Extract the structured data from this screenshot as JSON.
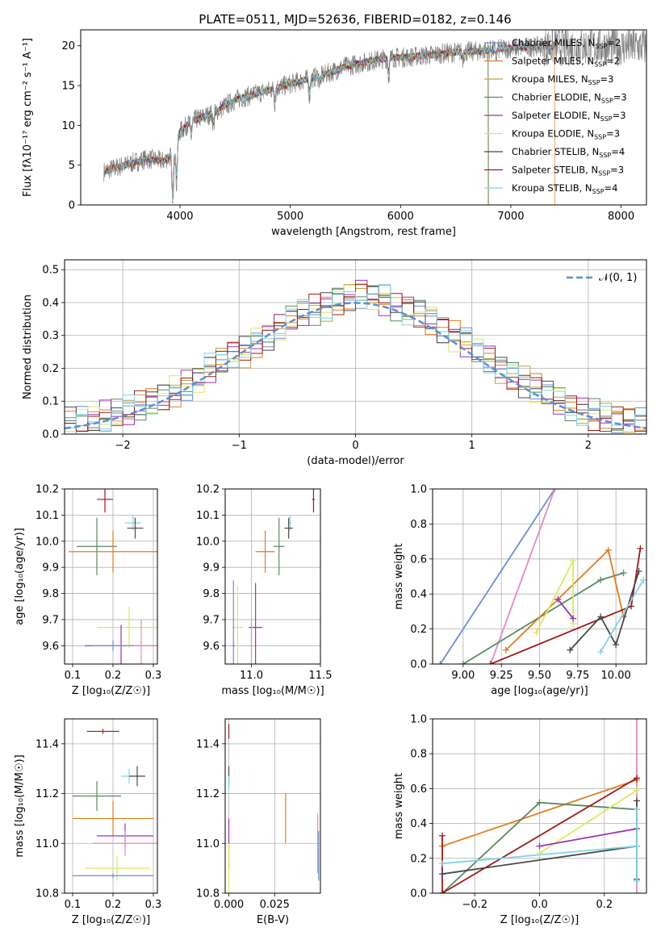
{
  "title": "PLATE=0511, MJD=52636, FIBERID=0182, z=0.146",
  "colors": {
    "chabrier_miles": "#6a8fd6",
    "salpeter_miles": "#e07c1d",
    "kroupa_miles": "#c8a03c",
    "chabrier_elodie": "#5a8a5f",
    "salpeter_elodie": "#9b32b4",
    "kroupa_elodie": "#d8ea60",
    "chabrier_stelib": "#4a4a4a",
    "salpeter_stelib": "#a01b1b",
    "kroupa_stelib": "#80d4e8",
    "normal_curve": "#5b8fd6",
    "pink": "#e48ac0"
  },
  "chart_data": [
    {
      "id": "spectrum",
      "type": "line",
      "xlabel": "wavelength [Angstrom, rest frame]",
      "ylabel": "Flux [fλ10⁻¹⁷ erg cm⁻² s⁻¹ A⁻¹]",
      "xlim": [
        3100,
        8230
      ],
      "ylim": [
        0,
        22
      ],
      "xticks": [
        4000,
        5000,
        6000,
        7000,
        8000
      ],
      "yticks": [
        0,
        5,
        10,
        15,
        20
      ],
      "grid": false,
      "legend_placement": "top-right",
      "continuum": [
        [
          3310,
          4.2
        ],
        [
          3400,
          4.6
        ],
        [
          3550,
          5.2
        ],
        [
          3700,
          5.8
        ],
        [
          3850,
          5.5
        ],
        [
          3950,
          6.5
        ],
        [
          4000,
          9.2
        ],
        [
          4100,
          10.5
        ],
        [
          4300,
          11.5
        ],
        [
          4500,
          13.2
        ],
        [
          4700,
          14.0
        ],
        [
          4900,
          14.8
        ],
        [
          5100,
          15.6
        ],
        [
          5300,
          16.3
        ],
        [
          5500,
          17.4
        ],
        [
          5700,
          18.0
        ],
        [
          5900,
          18.5
        ],
        [
          6100,
          18.6
        ],
        [
          6300,
          18.9
        ],
        [
          6500,
          19.2
        ],
        [
          6700,
          19.3
        ],
        [
          6900,
          19.6
        ],
        [
          7100,
          19.8
        ],
        [
          7300,
          19.9
        ]
      ],
      "absorption_features": [
        [
          3934,
          7
        ],
        [
          3969,
          5
        ],
        [
          4102,
          2
        ],
        [
          4304,
          1.6
        ],
        [
          4861,
          1.8
        ],
        [
          5175,
          2.2
        ],
        [
          5270,
          0.8
        ],
        [
          5892,
          2.5
        ],
        [
          6563,
          0.8
        ],
        [
          6867,
          0.9
        ]
      ],
      "series": [
        {
          "name": "Chabrier MILES",
          "nssp": "2",
          "xmax": 7400,
          "end_drop": null
        },
        {
          "name": "Salpeter MILES",
          "nssp": "2",
          "xmax": 7400,
          "end_drop": 7400
        },
        {
          "name": "Kroupa MILES",
          "nssp": "3",
          "xmax": 6790,
          "end_drop": 6790
        },
        {
          "name": "Chabrier ELODIE",
          "nssp": "3",
          "xmax": 6800,
          "end_drop": 6800
        },
        {
          "name": "Salpeter ELODIE",
          "nssp": "3",
          "xmax": 6800,
          "end_drop": null
        },
        {
          "name": "Kroupa ELODIE",
          "nssp": "3",
          "xmax": 6800,
          "end_drop": null
        },
        {
          "name": "Chabrier STELIB",
          "nssp": "4",
          "xmax": 7400,
          "end_drop": null
        },
        {
          "name": "Salpeter STELIB",
          "nssp": "3",
          "xmax": 7400,
          "end_drop": null
        },
        {
          "name": "Kroupa STELIB",
          "nssp": "4",
          "xmax": 7400,
          "end_drop": null
        }
      ],
      "data_series_color": "#808080",
      "data_xrange": [
        3310,
        8230
      ]
    },
    {
      "id": "residuals",
      "type": "step",
      "xlabel": "(data-model)/error",
      "ylabel": "Normed distribution",
      "xlim": [
        -2.5,
        2.5
      ],
      "ylim": [
        0,
        0.53
      ],
      "xticks": [
        -2,
        -1,
        0,
        1,
        2
      ],
      "yticks": [
        0.0,
        0.1,
        0.2,
        0.3,
        0.4,
        0.5
      ],
      "grid": true,
      "legend_label": "𝒩(0, 1)",
      "legend_placement": "top-right",
      "bin_edges_start": -2.5,
      "bin_width": 0.1,
      "histograms": [
        [
          0.03,
          0.03,
          0.05,
          0.05,
          0.05,
          0.08,
          0.08,
          0.08,
          0.1,
          0.1,
          0.1,
          0.14,
          0.16,
          0.17,
          0.21,
          0.19,
          0.21,
          0.23,
          0.28,
          0.28,
          0.3,
          0.35,
          0.33,
          0.35,
          0.37,
          0.4,
          0.42,
          0.4,
          0.43,
          0.46,
          0.47,
          0.4,
          0.45,
          0.44,
          0.42,
          0.38,
          0.36,
          0.36,
          0.34,
          0.3,
          0.28,
          0.26,
          0.22,
          0.2,
          0.2,
          0.18,
          0.14,
          0.13,
          0.12,
          0.09,
          0.08,
          0.08
        ],
        [
          0.035,
          0.04,
          0.045,
          0.055,
          0.06,
          0.07,
          0.085,
          0.095,
          0.11,
          0.13,
          0.15,
          0.17,
          0.2,
          0.22,
          0.24,
          0.25,
          0.28,
          0.3,
          0.33,
          0.35,
          0.37,
          0.38,
          0.39,
          0.41,
          0.42,
          0.43,
          0.42,
          0.41,
          0.39,
          0.38,
          0.37,
          0.35,
          0.32,
          0.3,
          0.28,
          0.25,
          0.23,
          0.2,
          0.18,
          0.16,
          0.14,
          0.12,
          0.1,
          0.085,
          0.07,
          0.06,
          0.05,
          0.04,
          0.035,
          0.03
        ]
      ]
    },
    {
      "id": "age_vs_Z",
      "type": "scatter",
      "xlabel": "Z [log₁₀(Z/Z☉)]",
      "ylabel": "age  [log₁₀(age/yr)]",
      "xlim": [
        0.08,
        0.31
      ],
      "ylim": [
        9.53,
        10.2
      ],
      "xticks": [
        0.1,
        0.2,
        0.3
      ],
      "yticks": [
        9.6,
        9.7,
        9.8,
        9.9,
        10.0,
        10.1,
        10.2
      ],
      "grid": true,
      "points": [
        {
          "x": 0.18,
          "y": 10.16,
          "xerr": 0.02,
          "yerr": 0.05,
          "color": "#a01b1b"
        },
        {
          "x": 0.25,
          "y": 10.07,
          "xerr": 0.02,
          "yerr": 0.03,
          "color": "#80d4e8"
        },
        {
          "x": 0.255,
          "y": 10.05,
          "xerr": 0.02,
          "yerr": 0.04,
          "color": "#4a4a4a"
        },
        {
          "x": 0.16,
          "y": 9.98,
          "xerr": 0.05,
          "yerr": 0.11,
          "color": "#5a8a5f"
        },
        {
          "x": 0.2,
          "y": 9.96,
          "xerr": 0.11,
          "yerr": 0.08,
          "color": "#e07c1d"
        },
        {
          "x": 0.24,
          "y": 9.67,
          "xerr": 0.08,
          "yerr": 0.08,
          "color": "#d8ea60"
        },
        {
          "x": 0.22,
          "y": 9.6,
          "xerr": 0.09,
          "yerr": 0.08,
          "color": "#9b32b4"
        },
        {
          "x": 0.27,
          "y": 9.6,
          "xerr": 0.08,
          "yerr": 0.1,
          "color": "#e48ac0"
        },
        {
          "x": 0.2,
          "y": 9.6,
          "xerr": 0.05,
          "yerr": 0.02,
          "color": "#6a8fd6"
        }
      ]
    },
    {
      "id": "age_vs_mass",
      "type": "scatter",
      "xlabel": "mass [log₁₀(M/M☉)]",
      "ylabel": "",
      "xlim": [
        10.81,
        11.5
      ],
      "ylim": [
        9.53,
        10.2
      ],
      "xticks": [
        11.0,
        11.5
      ],
      "yticks": [
        9.6,
        9.7,
        9.8,
        9.9,
        10.0,
        10.1,
        10.2
      ],
      "grid": true,
      "points": [
        {
          "x": 11.45,
          "y": 10.16,
          "xerr": 0.01,
          "yerr": 0.05,
          "color": "#a01b1b"
        },
        {
          "x": 11.28,
          "y": 10.07,
          "xerr": 0.01,
          "yerr": 0.03,
          "color": "#80d4e8"
        },
        {
          "x": 11.27,
          "y": 10.05,
          "xerr": 0.03,
          "yerr": 0.04,
          "color": "#4a4a4a"
        },
        {
          "x": 11.2,
          "y": 9.98,
          "xerr": 0.04,
          "yerr": 0.11,
          "color": "#5a8a5f"
        },
        {
          "x": 11.1,
          "y": 9.96,
          "xerr": 0.07,
          "yerr": 0.08,
          "color": "#e07c1d"
        },
        {
          "x": 10.9,
          "y": 9.67,
          "xerr": 0.04,
          "yerr": 0.16,
          "color": "#d8ea60"
        },
        {
          "x": 11.03,
          "y": 9.67,
          "xerr": 0.05,
          "yerr": 0.17,
          "color": "#9b32b4"
        },
        {
          "x": 11.0,
          "y": 9.6,
          "xerr": 0.01,
          "yerr": 0.1,
          "color": "#e48ac0"
        },
        {
          "x": 10.87,
          "y": 9.6,
          "xerr": 0.01,
          "yerr": 0.25,
          "color": "#6a8fd6"
        }
      ]
    },
    {
      "id": "massweight_vs_age",
      "type": "line",
      "xlabel": "age  [log₁₀(age/yr)]",
      "ylabel": "mass weight",
      "xlim": [
        8.8,
        10.2
      ],
      "ylim": [
        0,
        1
      ],
      "xticks": [
        9.0,
        9.25,
        9.5,
        9.75,
        10.0
      ],
      "yticks": [
        0.0,
        0.2,
        0.4,
        0.6,
        0.8,
        1.0
      ],
      "grid": true,
      "series": [
        {
          "color": "#6a8fd6",
          "points": [
            [
              8.85,
              0.0
            ],
            [
              9.6,
              1.0
            ]
          ]
        },
        {
          "color": "#e48ac0",
          "points": [
            [
              9.18,
              0.0
            ],
            [
              9.6,
              1.0
            ]
          ]
        },
        {
          "color": "#5a8a5f",
          "points": [
            [
              9.0,
              0.0
            ],
            [
              9.9,
              0.48
            ],
            [
              10.05,
              0.52
            ]
          ]
        },
        {
          "color": "#e07c1d",
          "points": [
            [
              9.28,
              0.08
            ],
            [
              9.95,
              0.65
            ],
            [
              10.05,
              0.27
            ]
          ]
        },
        {
          "color": "#d8ea60",
          "points": [
            [
              9.48,
              0.18
            ],
            [
              9.72,
              0.59
            ],
            [
              9.72,
              0.23
            ]
          ]
        },
        {
          "color": "#9b32b4",
          "points": [
            [
              9.62,
              0.37
            ],
            [
              9.72,
              0.26
            ]
          ]
        },
        {
          "color": "#a01b1b",
          "points": [
            [
              9.18,
              0.0
            ],
            [
              10.1,
              0.33
            ],
            [
              10.16,
              0.66
            ]
          ]
        },
        {
          "color": "#4a4a4a",
          "points": [
            [
              9.7,
              0.08
            ],
            [
              9.9,
              0.27
            ],
            [
              10.0,
              0.11
            ],
            [
              10.15,
              0.53
            ]
          ]
        },
        {
          "color": "#80d4e8",
          "points": [
            [
              9.9,
              0.07
            ],
            [
              10.18,
              0.48
            ]
          ]
        }
      ]
    },
    {
      "id": "mass_vs_Z",
      "type": "scatter",
      "xlabel": "Z [log₁₀(Z/Z☉)]",
      "ylabel": "mass [log₁₀(M/M☉)]",
      "xlim": [
        0.08,
        0.31
      ],
      "ylim": [
        10.8,
        11.5
      ],
      "xticks": [
        0.1,
        0.2,
        0.3
      ],
      "yticks": [
        10.8,
        11.0,
        11.2,
        11.4
      ],
      "grid": true,
      "points": [
        {
          "x": 0.175,
          "y": 11.45,
          "xerr": 0.04,
          "yerr": 0.01,
          "color": "#a01b1b"
        },
        {
          "x": 0.24,
          "y": 11.27,
          "xerr": 0.02,
          "yerr": 0.03,
          "color": "#80d4e8"
        },
        {
          "x": 0.26,
          "y": 11.27,
          "xerr": 0.02,
          "yerr": 0.04,
          "color": "#4a4a4a"
        },
        {
          "x": 0.16,
          "y": 11.19,
          "xerr": 0.06,
          "yerr": 0.06,
          "color": "#5a8a5f"
        },
        {
          "x": 0.2,
          "y": 11.1,
          "xerr": 0.1,
          "yerr": 0.07,
          "color": "#e07c1d"
        },
        {
          "x": 0.23,
          "y": 11.03,
          "xerr": 0.07,
          "yerr": 0.05,
          "color": "#9b32b4"
        },
        {
          "x": 0.23,
          "y": 11.0,
          "xerr": 0.08,
          "yerr": 0.05,
          "color": "#e48ac0"
        },
        {
          "x": 0.21,
          "y": 10.9,
          "xerr": 0.08,
          "yerr": 0.05,
          "color": "#d8ea60"
        },
        {
          "x": 0.2,
          "y": 10.87,
          "xerr": 0.1,
          "yerr": 0.01,
          "color": "#6a8fd6"
        }
      ]
    },
    {
      "id": "mass_vs_EBV",
      "type": "scatter",
      "xlabel": "E(B-V)",
      "ylabel": "",
      "xlim": [
        -0.002,
        0.05
      ],
      "ylim": [
        10.8,
        11.5
      ],
      "xticks": [
        0.0,
        0.025
      ],
      "yticks": [
        10.8,
        11.0,
        11.2,
        11.4
      ],
      "grid": true,
      "points": [
        {
          "x": 0.0,
          "y": 11.45,
          "xerr": 0.0,
          "yerr": 0.03,
          "color": "#a01b1b"
        },
        {
          "x": 0.0,
          "y": 11.27,
          "xerr": 0.0,
          "yerr": 0.04,
          "color": "#4a4a4a"
        },
        {
          "x": 0.0,
          "y": 11.24,
          "xerr": 0.0,
          "yerr": 0.03,
          "color": "#80d4e8"
        },
        {
          "x": 0.0,
          "y": 11.0,
          "xerr": 0.0,
          "yerr": 0.1,
          "color": "#9b32b4"
        },
        {
          "x": 0.0,
          "y": 10.9,
          "xerr": 0.0,
          "yerr": 0.1,
          "color": "#d8ea60"
        },
        {
          "x": 0.031,
          "y": 11.1,
          "xerr": 0.0,
          "yerr": 0.1,
          "color": "#e07c1d"
        },
        {
          "x": 0.0485,
          "y": 11.0,
          "xerr": 0.0,
          "yerr": 0.12,
          "color": "#e48ac0"
        },
        {
          "x": 0.049,
          "y": 10.95,
          "xerr": 0.0,
          "yerr": 0.1,
          "color": "#6a8fd6"
        }
      ]
    },
    {
      "id": "massweight_vs_Z",
      "type": "line",
      "xlabel": "Z [log₁₀(Z/Z☉)]",
      "ylabel": "mass weight",
      "xlim": [
        -0.33,
        0.33
      ],
      "ylim": [
        0,
        1
      ],
      "xticks": [
        -0.2,
        0.0,
        0.2
      ],
      "yticks": [
        0.0,
        0.2,
        0.4,
        0.6,
        0.8,
        1.0
      ],
      "grid": true,
      "series": [
        {
          "color": "#e48ac0",
          "points": [
            [
              0.3,
              0.0
            ],
            [
              0.3,
              1.0
            ]
          ]
        },
        {
          "color": "#e07c1d",
          "points": [
            [
              -0.3,
              0.27
            ],
            [
              0.3,
              0.65
            ]
          ]
        },
        {
          "color": "#5a8a5f",
          "points": [
            [
              -0.3,
              0.0
            ],
            [
              0.0,
              0.52
            ],
            [
              0.3,
              0.48
            ]
          ]
        },
        {
          "color": "#a01b1b",
          "points": [
            [
              -0.3,
              0.0
            ],
            [
              0.3,
              0.66
            ]
          ]
        },
        {
          "color": "#a01b1b",
          "points": [
            [
              -0.3,
              0.33
            ],
            [
              -0.3,
              0.0
            ]
          ]
        },
        {
          "color": "#d8ea60",
          "points": [
            [
              0.0,
              0.23
            ],
            [
              0.3,
              0.59
            ]
          ]
        },
        {
          "color": "#9b32b4",
          "points": [
            [
              0.0,
              0.27
            ],
            [
              0.3,
              0.37
            ]
          ]
        },
        {
          "color": "#4a4a4a",
          "points": [
            [
              -0.3,
              0.11
            ],
            [
              0.3,
              0.27
            ],
            [
              0.3,
              0.53
            ],
            [
              0.3,
              0.08
            ]
          ]
        },
        {
          "color": "#80d4e8",
          "points": [
            [
              -0.3,
              0.17
            ],
            [
              0.3,
              0.27
            ],
            [
              0.3,
              0.48
            ],
            [
              0.3,
              0.07
            ]
          ]
        }
      ]
    }
  ]
}
